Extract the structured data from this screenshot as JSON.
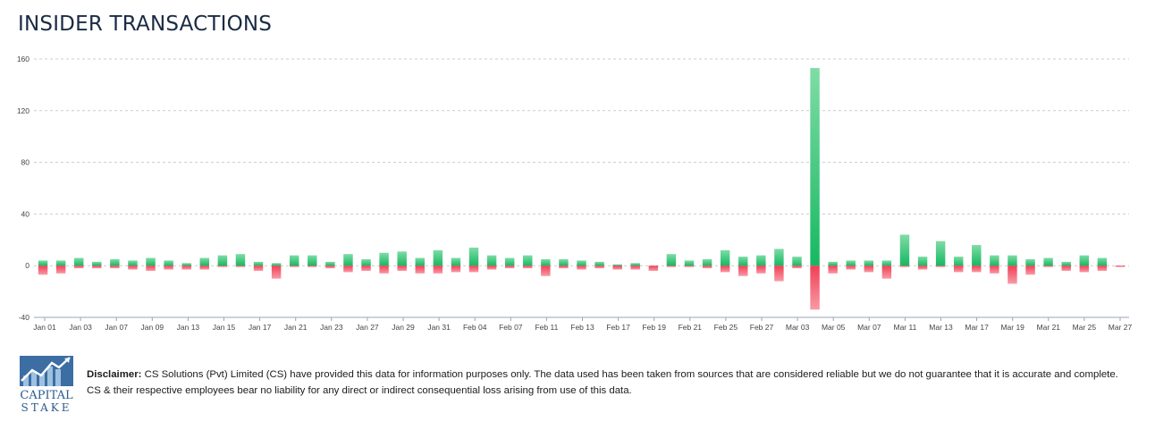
{
  "header": {
    "title": "INSIDER TRANSACTIONS"
  },
  "colors": {
    "positive": "#1fbf6a",
    "negative": "#f04a5f",
    "grid": "#cccccc",
    "axis": "#9aa5b8",
    "title": "#1a2b44"
  },
  "chart_data": {
    "type": "bar",
    "title": "INSIDER TRANSACTIONS",
    "xlabel": "",
    "ylabel": "",
    "ylim": [
      -40,
      160
    ],
    "yticks": [
      -40,
      0,
      40,
      80,
      120,
      160
    ],
    "grid": true,
    "x_tick_labels": [
      "Jan 01",
      "Jan 03",
      "Jan 07",
      "Jan 09",
      "Jan 13",
      "Jan 15",
      "Jan 17",
      "Jan 21",
      "Jan 23",
      "Jan 27",
      "Jan 29",
      "Jan 31",
      "Feb 04",
      "Feb 07",
      "Feb 11",
      "Feb 13",
      "Feb 17",
      "Feb 19",
      "Feb 21",
      "Feb 25",
      "Feb 27",
      "Mar 03",
      "Mar 05",
      "Mar 07",
      "Mar 11",
      "Mar 13",
      "Mar 17",
      "Mar 19",
      "Mar 21",
      "Mar 25",
      "Mar 27"
    ],
    "series": [
      {
        "values": [
          4,
          4,
          6,
          3,
          5,
          4,
          6,
          4,
          2,
          6,
          8,
          9,
          3,
          2,
          8,
          8,
          3,
          9,
          5,
          10,
          11,
          6,
          12,
          6,
          14,
          8,
          6,
          8,
          5,
          5,
          4,
          3,
          1,
          2,
          0,
          9,
          4,
          5,
          12,
          7,
          8,
          13,
          7,
          153,
          3,
          4,
          4,
          4,
          24,
          7,
          19,
          7,
          16,
          8,
          8,
          5,
          6,
          3,
          8,
          6,
          0
        ]
      },
      {
        "values": [
          -7,
          -6,
          -2,
          -2,
          -2,
          -3,
          -4,
          -3,
          -3,
          -3,
          -1,
          -1,
          -4,
          -10,
          -1,
          -1,
          -2,
          -5,
          -4,
          -6,
          -4,
          -6,
          -6,
          -5,
          -5,
          -3,
          -2,
          -2,
          -8,
          -2,
          -3,
          -2,
          -3,
          -3,
          -4,
          -1,
          -1,
          -2,
          -5,
          -8,
          -6,
          -12,
          -2,
          -34,
          -6,
          -3,
          -5,
          -10,
          -1,
          -3,
          -1,
          -5,
          -5,
          -6,
          -14,
          -7,
          -1,
          -4,
          -5,
          -4,
          -1
        ]
      }
    ]
  },
  "footer": {
    "disclaimer_label": "Disclaimer:",
    "disclaimer_text": " CS Solutions (Pvt) Limited (CS) have provided this data for information purposes only. The data used has been taken from sources that are considered reliable but we do not guarantee that it is accurate and complete. CS & their respective employees bear no liability for any direct or indirect consequential loss arising from use of this data.",
    "logo_line1": "CAPITAL",
    "logo_line2": "STAKE"
  }
}
